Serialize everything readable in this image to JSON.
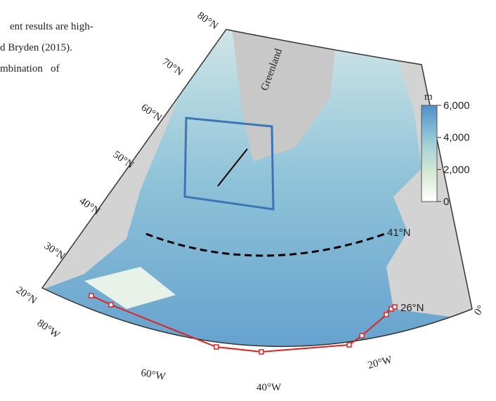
{
  "text_fragment": [
    "ent results are high-",
    "d Bryden (2015).",
    "mbination   of"
  ],
  "map": {
    "latitude_labels": [
      "80°N",
      "70°N",
      "60°N",
      "50°N",
      "40°N",
      "30°N",
      "20°N"
    ],
    "longitude_labels": [
      "80°W",
      "60°W",
      "40°W",
      "20°W",
      "0°"
    ],
    "region_label": "Greenland",
    "section_labels": [
      "41°N",
      "26°N"
    ],
    "colorbar": {
      "unit": "m",
      "range": [
        0,
        6000
      ],
      "ticks": [
        {
          "value": 6000,
          "label": "6,000"
        },
        {
          "value": 4000,
          "label": "4,000"
        },
        {
          "value": 2000,
          "label": "2,000"
        },
        0
      ]
    }
  }
}
